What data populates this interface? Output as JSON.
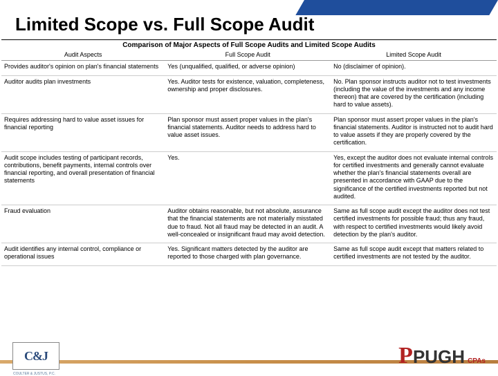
{
  "title": "Limited Scope vs. Full Scope Audit",
  "subtitle": "Comparison of Major Aspects of Full Scope Audits and Limited Scope Audits",
  "columns": [
    "Audit Aspects",
    "Full Scope Audit",
    "Limited Scope Audit"
  ],
  "rows": [
    {
      "aspect": "Provides auditor's opinion on plan's financial statements",
      "full": "Yes (unqualified, qualified, or adverse opinion)",
      "limited": "No (disclaimer of opinion)."
    },
    {
      "aspect": "Auditor audits plan investments",
      "full": "Yes. Auditor tests for existence, valuation, completeness, ownership and proper disclosures.",
      "limited": "No. Plan sponsor instructs auditor not to test investments (including the value of the investments and any income thereon) that are covered by the certification (including hard to value assets)."
    },
    {
      "aspect": "Requires addressing hard to value asset issues for financial reporting",
      "full": "Plan sponsor must assert proper values in the plan's financial statements. Auditor needs to address hard to value asset issues.",
      "limited": "Plan sponsor must assert proper values in the plan's financial statements. Auditor is instructed not to audit hard to value assets if they are properly covered by the certification."
    },
    {
      "aspect": "Audit scope includes testing of participant records, contributions, benefit payments, internal controls over financial reporting, and overall presentation of financial statements",
      "full": "Yes.",
      "limited": "Yes, except the auditor does not evaluate internal controls for certified investments and generally cannot evaluate whether the plan's financial statements overall are presented in accordance with GAAP due to the significance of the certified investments reported but not audited."
    },
    {
      "aspect": "Fraud evaluation",
      "full": "Auditor obtains reasonable, but not absolute, assurance that the financial statements are not materially misstated due to fraud. Not all fraud may be detected in an audit. A well-concealed or insignificant fraud may avoid detection.",
      "limited": "Same as full scope audit except the auditor does not test certified investments for possible fraud; thus any fraud, with respect to certified investments would likely avoid detection by the plan's auditor."
    },
    {
      "aspect": "Audit identifies any internal control, compliance or operational issues",
      "full": "Yes. Significant matters detected by the auditor are reported to those charged with plan governance.",
      "limited": "Same as full scope audit except that matters related to certified investments are not tested by the auditor."
    }
  ],
  "logo_left": {
    "text": "C&J",
    "sub": "COULTER & JUSTUS, P.C."
  },
  "logo_right": {
    "p": "P",
    "rest": "PUGH",
    "cpas": "CPAs"
  }
}
